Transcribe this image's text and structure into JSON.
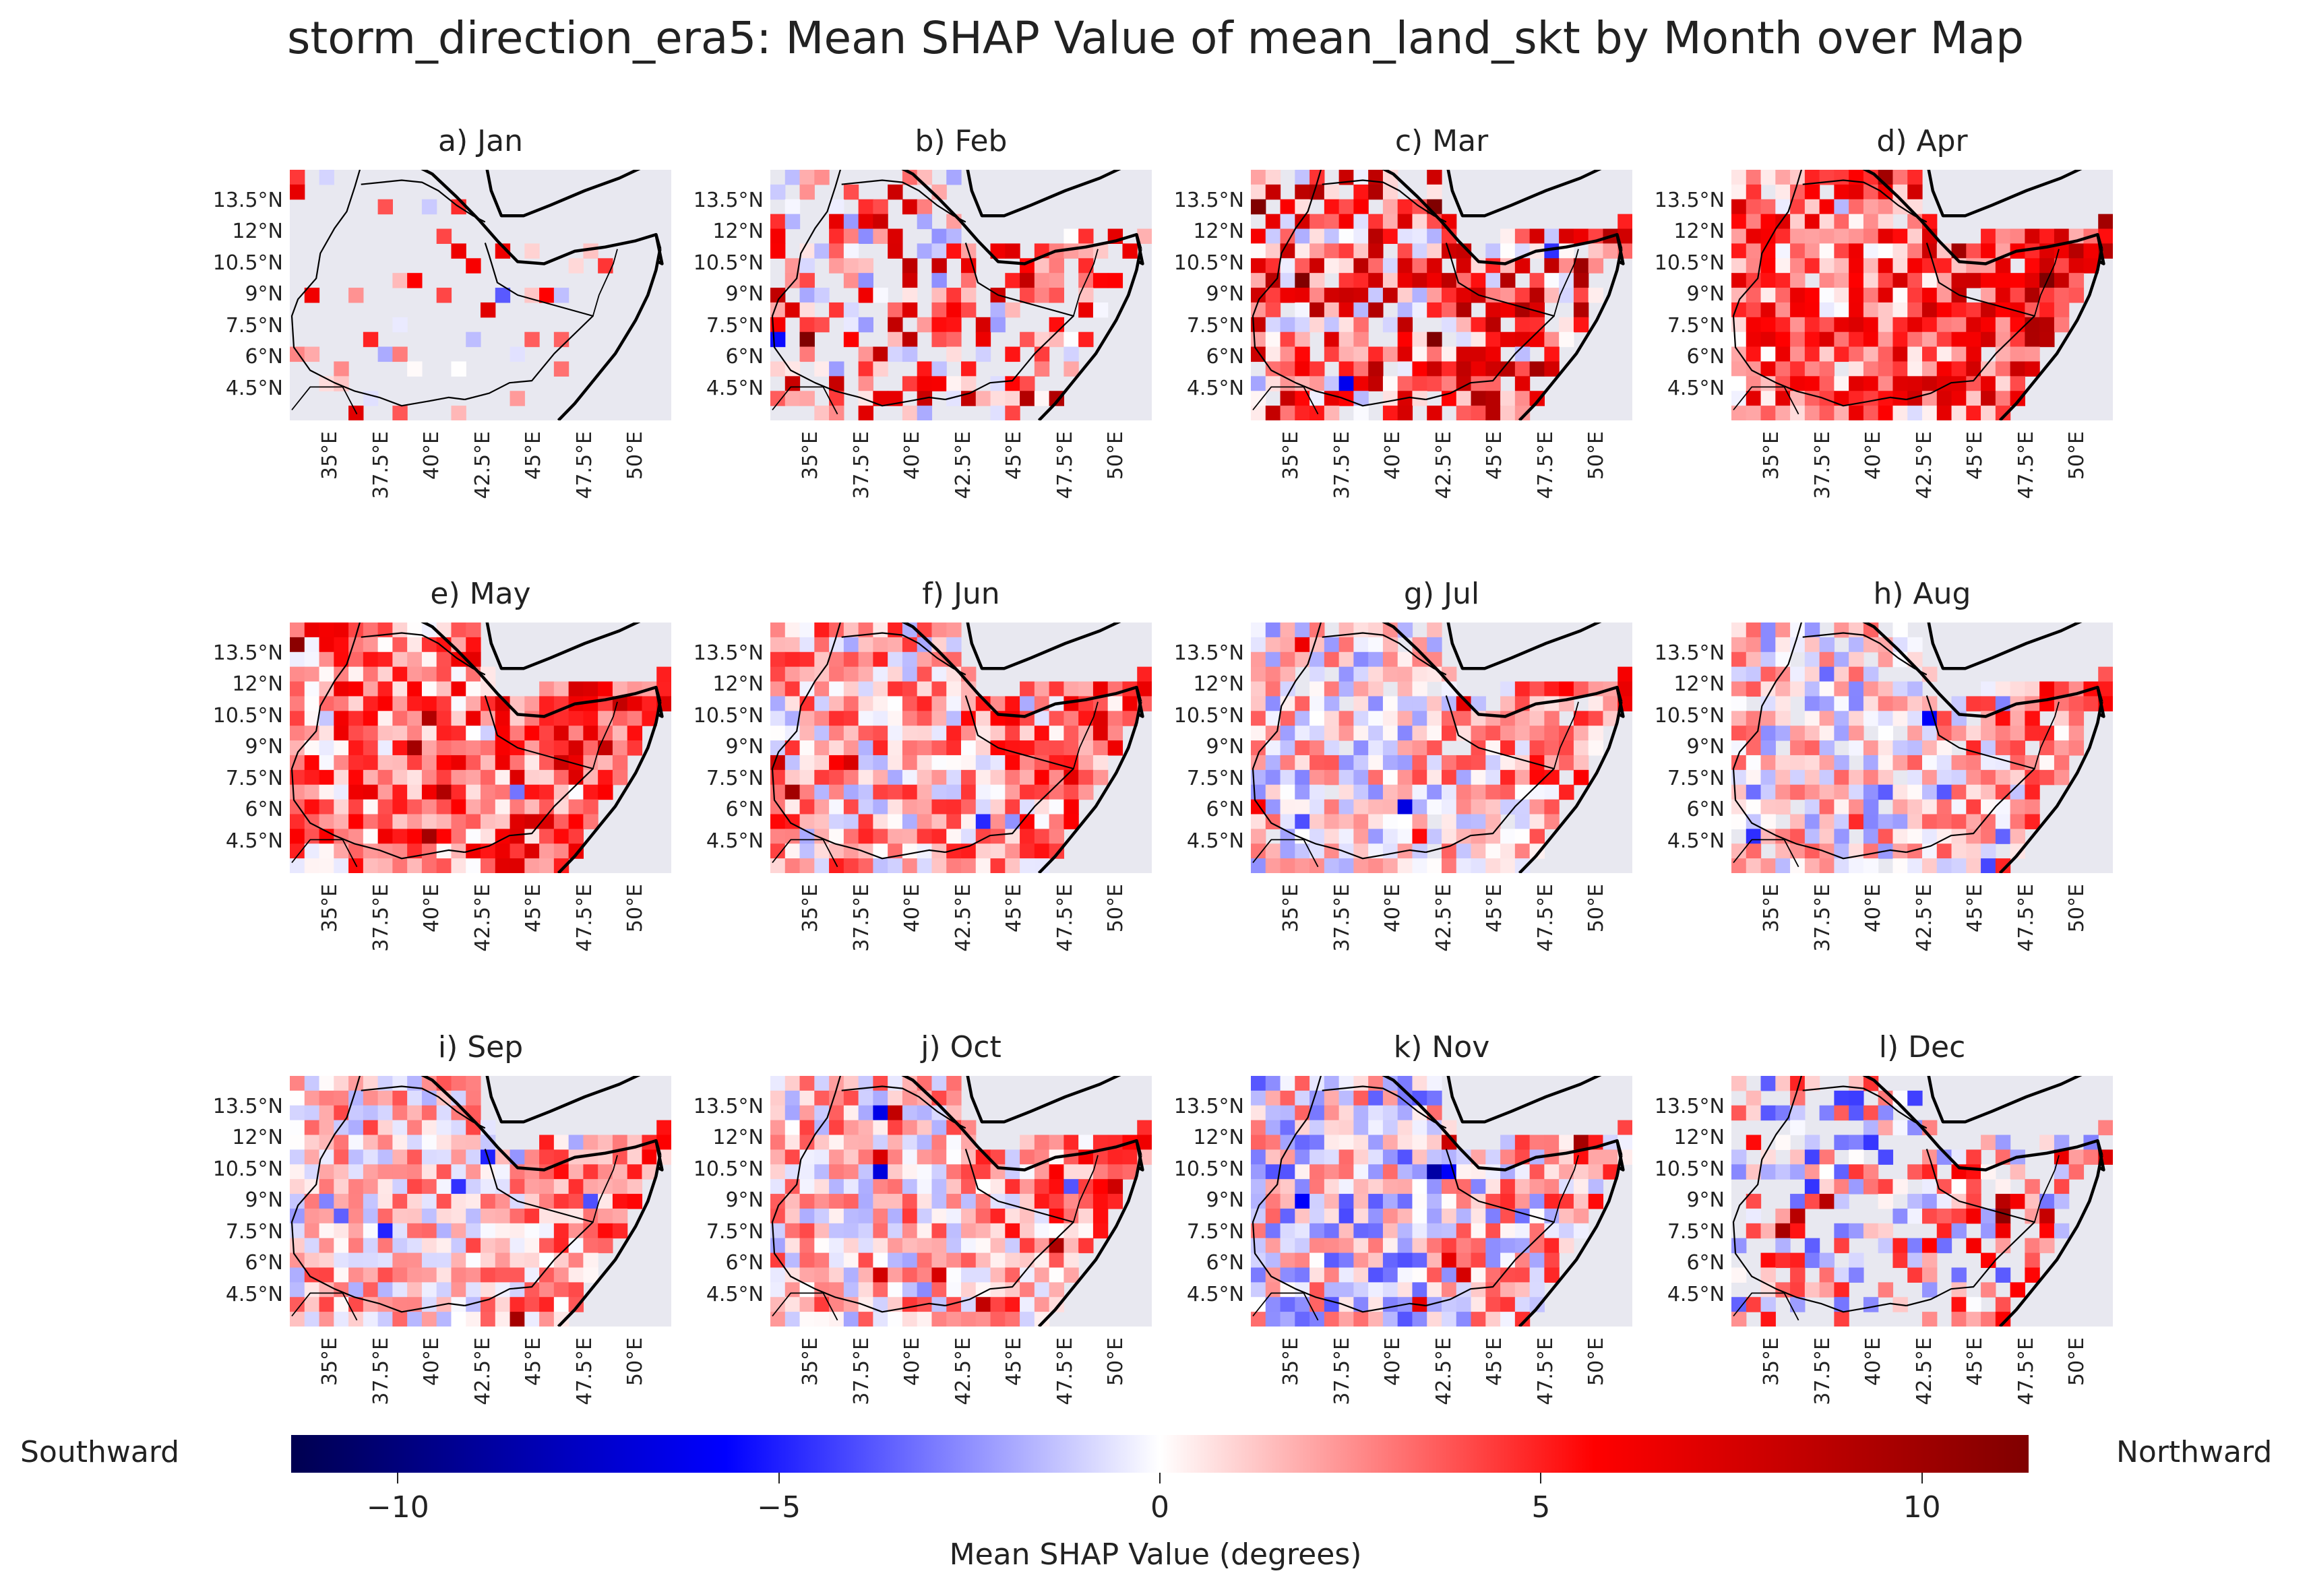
{
  "title": "storm_direction_era5: Mean SHAP Value of mean_land_skt by Month over Map",
  "panels": [
    {
      "label": "a) Jan",
      "density": 0.12,
      "bias": 0.25,
      "spread": 0.45,
      "east_boost": 0.0
    },
    {
      "label": "b) Feb",
      "density": 0.55,
      "bias": 0.3,
      "spread": 0.55,
      "east_boost": 0.1
    },
    {
      "label": "c) Mar",
      "density": 0.85,
      "bias": 0.35,
      "spread": 0.55,
      "east_boost": 0.1
    },
    {
      "label": "d) Apr",
      "density": 0.98,
      "bias": 0.35,
      "spread": 0.4,
      "east_boost": 0.25
    },
    {
      "label": "e) May",
      "density": 1.0,
      "bias": 0.3,
      "spread": 0.35,
      "east_boost": 0.25
    },
    {
      "label": "f) Jun",
      "density": 1.0,
      "bias": 0.15,
      "spread": 0.35,
      "east_boost": 0.25
    },
    {
      "label": "g) Jul",
      "density": 0.92,
      "bias": 0.05,
      "spread": 0.32,
      "east_boost": 0.3
    },
    {
      "label": "h) Aug",
      "density": 0.9,
      "bias": 0.05,
      "spread": 0.32,
      "east_boost": 0.3
    },
    {
      "label": "i) Sep",
      "density": 1.0,
      "bias": 0.12,
      "spread": 0.3,
      "east_boost": 0.25
    },
    {
      "label": "j) Oct",
      "density": 1.0,
      "bias": 0.12,
      "spread": 0.32,
      "east_boost": 0.22
    },
    {
      "label": "k) Nov",
      "density": 1.0,
      "bias": 0.0,
      "spread": 0.38,
      "east_boost": 0.2
    },
    {
      "label": "l) Dec",
      "density": 0.55,
      "bias": 0.05,
      "spread": 0.5,
      "east_boost": 0.15
    }
  ],
  "lat_ticks": [
    "13.5°N",
    "12°N",
    "10.5°N",
    "9°N",
    "7.5°N",
    "6°N",
    "4.5°N"
  ],
  "lon_ticks": [
    "35°E",
    "37.5°E",
    "40°E",
    "42.5°E",
    "45°E",
    "47.5°E",
    "50°E"
  ],
  "colorbar": {
    "ticks": [
      "−10",
      "−5",
      "0",
      "5",
      "10"
    ],
    "tick_values": [
      -10,
      -5,
      0,
      5,
      10
    ],
    "min": -11.4,
    "max": 11.4,
    "label": "Mean SHAP Value (degrees)",
    "left_label": "Southward",
    "right_label": "Northward",
    "colors": [
      "#000050",
      "#0000ff",
      "#ffffff",
      "#ff0000",
      "#800000"
    ]
  },
  "chart_data": {
    "type": "heatmap",
    "title": "storm_direction_era5: Mean SHAP Value of mean_land_skt by Month over Map",
    "facets": [
      "a) Jan",
      "b) Feb",
      "c) Mar",
      "d) Apr",
      "e) May",
      "f) Jun",
      "g) Jul",
      "h) Aug",
      "i) Sep",
      "j) Oct",
      "k) Nov",
      "l) Dec"
    ],
    "xlabel": "",
    "ylabel": "",
    "x_ticks": [
      "35°E",
      "37.5°E",
      "40°E",
      "42.5°E",
      "45°E",
      "47.5°E",
      "50°E"
    ],
    "y_ticks": [
      "13.5°N",
      "12°N",
      "10.5°N",
      "9°N",
      "7.5°N",
      "6°N",
      "4.5°N"
    ],
    "xlim": [
      33.0,
      51.75
    ],
    "ylim": [
      3.0,
      15.0
    ],
    "color_scale": {
      "min": -11.4,
      "max": 11.4,
      "label": "Mean SHAP Value (degrees)",
      "cmap": "seismic"
    },
    "grid": false
  }
}
